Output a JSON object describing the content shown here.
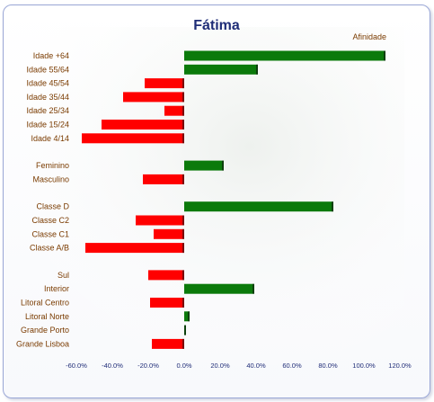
{
  "chart_data": {
    "type": "bar",
    "orientation": "horizontal",
    "title": "Fátima",
    "legend": [
      "Afinidade"
    ],
    "legend_position": "top-right",
    "categories": [
      "Idade +64",
      "Idade 55/64",
      "Idade 45/54",
      "Idade 35/44",
      "Idade 25/34",
      "Idade 15/24",
      "Idade 4/14",
      "Feminino",
      "Masculino",
      "Classe D",
      "Classe C2",
      "Classe C1",
      "Classe A/B",
      "Sul",
      "Interior",
      "Litoral Centro",
      "Litoral Norte",
      "Grande Porto",
      "Grande Lisboa"
    ],
    "groups": [
      7,
      2,
      4,
      6
    ],
    "values": [
      112,
      41,
      -22,
      -34,
      -11,
      -46,
      -57,
      22,
      -23,
      83,
      -27,
      -17,
      -55,
      -20,
      39,
      -19,
      3,
      1,
      -18
    ],
    "xlim": [
      -60,
      120
    ],
    "xticks": [
      "-60.0%",
      "-40.0%",
      "-20.0%",
      "0.0%",
      "20.0%",
      "40.0%",
      "60.0%",
      "80.0%",
      "100.0%",
      "120.0%"
    ],
    "colors": {
      "positive": "#0b7a0b",
      "negative": "#ff0000",
      "title": "#1f2d77",
      "labels": "#7a3b00"
    }
  }
}
